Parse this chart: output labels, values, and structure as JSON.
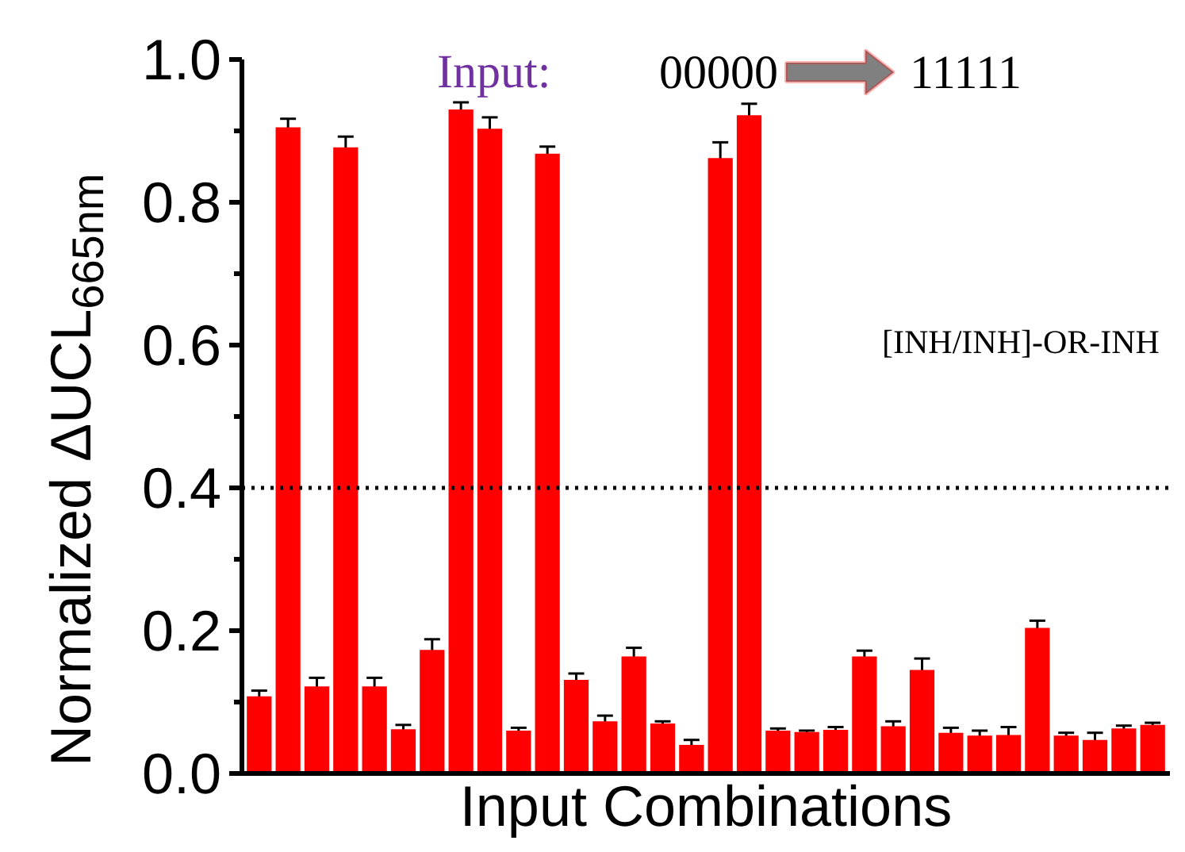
{
  "chart_data": {
    "type": "bar",
    "xlabel": "Input Combinations",
    "ylabel": "Normalized ΔUCL$_{665nm}$",
    "categories": [
      null,
      null,
      null,
      null,
      null,
      null,
      null,
      null,
      null,
      null,
      null,
      null,
      null,
      null,
      null,
      null,
      null,
      null,
      null,
      null,
      null,
      null,
      null,
      null,
      null,
      null,
      null,
      null,
      null,
      null,
      null,
      null
    ],
    "values": [
      0.108,
      0.905,
      0.122,
      0.877,
      0.122,
      0.062,
      0.173,
      0.93,
      0.903,
      0.06,
      0.868,
      0.131,
      0.073,
      0.164,
      0.07,
      0.04,
      0.862,
      0.922,
      0.06,
      0.058,
      0.061,
      0.164,
      0.066,
      0.145,
      0.057,
      0.053,
      0.054,
      0.204,
      0.053,
      0.047,
      0.063,
      0.068
    ],
    "errors": [
      0.008,
      0.012,
      0.012,
      0.015,
      0.012,
      0.006,
      0.015,
      0.01,
      0.016,
      0.004,
      0.01,
      0.009,
      0.008,
      0.012,
      0.003,
      0.007,
      0.022,
      0.016,
      0.003,
      0.002,
      0.004,
      0.008,
      0.007,
      0.016,
      0.007,
      0.007,
      0.011,
      0.01,
      0.004,
      0.01,
      0.004,
      0.003
    ],
    "color": "#ff0000",
    "ylim": [
      0,
      1.0
    ],
    "yticks": [
      {
        "value": 0,
        "label": "0.0"
      },
      0.2,
      0.4,
      0.6,
      0.8,
      {
        "value": 1.0,
        "label": "1.0"
      }
    ],
    "ref_lines": [
      {
        "axis": "y",
        "value": 0.4,
        "color": "#000000",
        "line_style": "dotted"
      }
    ],
    "annotations": [
      "Input:",
      "00000",
      "11111",
      "[INH/INH]-OR-INH"
    ],
    "grid": false
  }
}
